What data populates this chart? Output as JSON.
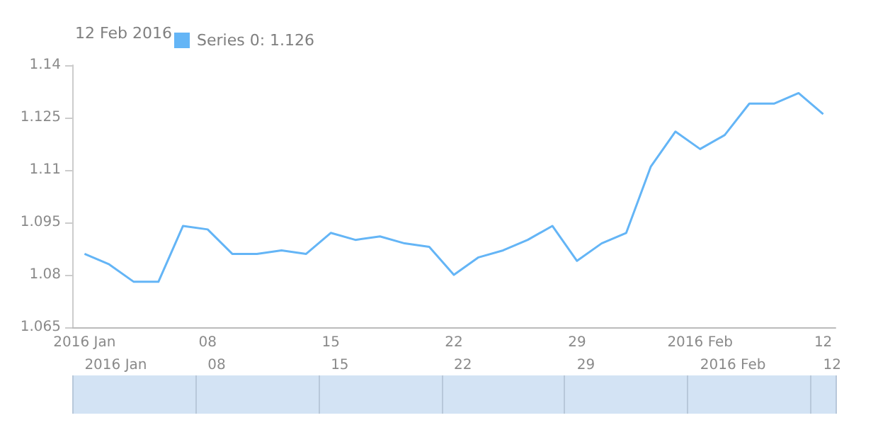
{
  "chart_data": {
    "type": "line",
    "categories": [
      "2016 Jan",
      null,
      null,
      null,
      null,
      "08",
      null,
      null,
      null,
      null,
      "15",
      null,
      null,
      null,
      null,
      "22",
      null,
      null,
      null,
      null,
      "29",
      null,
      null,
      null,
      null,
      "2016 Feb",
      null,
      null,
      null,
      null,
      "12"
    ],
    "series": [
      {
        "name": "Series 0: 1.126",
        "color": "#64b5f6",
        "values": [
          1.086,
          1.083,
          1.078,
          1.078,
          1.094,
          1.093,
          1.086,
          1.086,
          1.087,
          1.086,
          1.092,
          1.09,
          1.091,
          1.089,
          1.088,
          1.08,
          1.085,
          1.087,
          1.09,
          1.094,
          1.084,
          1.089,
          1.092,
          1.111,
          1.121,
          1.116,
          1.12,
          1.129,
          1.129,
          1.132,
          1.126
        ]
      }
    ],
    "ylim": [
      1.065,
      1.14
    ],
    "yticks": [
      1.065,
      1.08,
      1.095,
      1.11,
      1.125,
      1.14
    ],
    "grid": false,
    "legend": "top left",
    "marker": "none",
    "line_style": "solid",
    "annotations": [
      "12 Feb 2016"
    ]
  }
}
